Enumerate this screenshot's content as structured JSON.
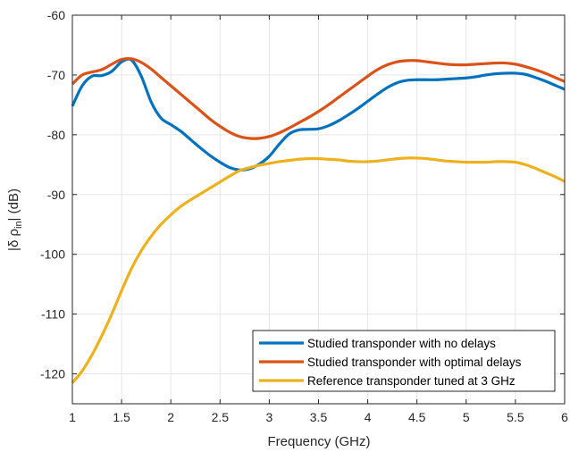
{
  "chart_data": {
    "type": "line",
    "xlabel": "Frequency (GHz)",
    "ylabel": {
      "prefix": "|δ ρ",
      "subscript": "in",
      "suffix": "| (dB)"
    },
    "xlim": [
      1,
      6
    ],
    "ylim": [
      -125,
      -60
    ],
    "xticks": [
      1,
      1.5,
      2,
      2.5,
      3,
      3.5,
      4,
      4.5,
      5,
      5.5,
      6
    ],
    "xtick_labels": [
      "1",
      "1.5",
      "2",
      "2.5",
      "3",
      "3.5",
      "4",
      "4.5",
      "5",
      "5.5",
      "6"
    ],
    "yticks": [
      -120,
      -110,
      -100,
      -90,
      -80,
      -70,
      -60
    ],
    "ytick_labels": [
      "-120",
      "-110",
      "-100",
      "-90",
      "-80",
      "-70",
      "-60"
    ],
    "grid": true,
    "legend_position": "bottom-right",
    "series": [
      {
        "name": "Studied transponder with no delays",
        "color": "#0072BD",
        "x": [
          1,
          1.1,
          1.2,
          1.3,
          1.4,
          1.5,
          1.6,
          1.7,
          1.8,
          1.9,
          2,
          2.1,
          2.2,
          2.3,
          2.4,
          2.5,
          2.6,
          2.7,
          2.8,
          2.9,
          3,
          3.1,
          3.2,
          3.3,
          3.4,
          3.5,
          3.6,
          3.7,
          3.8,
          3.9,
          4,
          4.1,
          4.2,
          4.3,
          4.4,
          4.5,
          4.6,
          4.7,
          4.8,
          4.9,
          5,
          5.1,
          5.2,
          5.3,
          5.4,
          5.5,
          5.6,
          5.7,
          5.8,
          5.9,
          6
        ],
        "y": [
          -75.2,
          -71.8,
          -70.2,
          -70.1,
          -69.4,
          -67.8,
          -67.5,
          -70.2,
          -74.5,
          -77.2,
          -78.3,
          -79.4,
          -80.8,
          -82.2,
          -83.5,
          -84.6,
          -85.5,
          -85.9,
          -85.7,
          -84.9,
          -83.6,
          -81.6,
          -79.9,
          -79.2,
          -79.1,
          -79.0,
          -78.5,
          -77.7,
          -76.7,
          -75.6,
          -74.4,
          -73.2,
          -72.1,
          -71.3,
          -70.9,
          -70.8,
          -70.8,
          -70.8,
          -70.7,
          -70.6,
          -70.5,
          -70.3,
          -70.0,
          -69.8,
          -69.7,
          -69.7,
          -69.9,
          -70.4,
          -71.0,
          -71.7,
          -72.4
        ]
      },
      {
        "name": "Studied transponder with optimal delays",
        "color": "#D95319",
        "x": [
          1,
          1.1,
          1.2,
          1.3,
          1.4,
          1.5,
          1.6,
          1.7,
          1.8,
          1.9,
          2,
          2.1,
          2.2,
          2.3,
          2.4,
          2.5,
          2.6,
          2.7,
          2.8,
          2.9,
          3,
          3.1,
          3.2,
          3.3,
          3.4,
          3.5,
          3.6,
          3.7,
          3.8,
          3.9,
          4,
          4.1,
          4.2,
          4.3,
          4.4,
          4.5,
          4.6,
          4.7,
          4.8,
          4.9,
          5,
          5.1,
          5.2,
          5.3,
          5.4,
          5.5,
          5.6,
          5.7,
          5.8,
          5.9,
          6
        ],
        "y": [
          -71.5,
          -70.0,
          -69.5,
          -69.1,
          -68.2,
          -67.4,
          -67.3,
          -67.9,
          -69.0,
          -70.4,
          -71.8,
          -73.2,
          -74.6,
          -76.0,
          -77.4,
          -78.6,
          -79.6,
          -80.3,
          -80.6,
          -80.6,
          -80.3,
          -79.7,
          -78.9,
          -78.0,
          -77.1,
          -76.1,
          -75.0,
          -73.8,
          -72.6,
          -71.4,
          -70.2,
          -69.1,
          -68.3,
          -67.8,
          -67.6,
          -67.6,
          -67.8,
          -68.0,
          -68.2,
          -68.3,
          -68.3,
          -68.2,
          -68.1,
          -68.0,
          -68.0,
          -68.2,
          -68.6,
          -69.1,
          -69.7,
          -70.4,
          -71.1
        ]
      },
      {
        "name": "Reference transponder tuned at 3 GHz",
        "color": "#EDB120",
        "x": [
          1,
          1.1,
          1.2,
          1.3,
          1.4,
          1.5,
          1.6,
          1.7,
          1.8,
          1.9,
          2,
          2.1,
          2.2,
          2.3,
          2.4,
          2.5,
          2.6,
          2.7,
          2.8,
          2.9,
          3,
          3.1,
          3.2,
          3.3,
          3.4,
          3.5,
          3.6,
          3.7,
          3.8,
          3.9,
          4,
          4.1,
          4.2,
          4.3,
          4.4,
          4.5,
          4.6,
          4.7,
          4.8,
          4.9,
          5,
          5.1,
          5.2,
          5.3,
          5.4,
          5.5,
          5.6,
          5.7,
          5.8,
          5.9,
          6
        ],
        "y": [
          -121.5,
          -119.5,
          -116.8,
          -113.6,
          -110.0,
          -106.1,
          -102.4,
          -99.4,
          -97.0,
          -95.0,
          -93.4,
          -92.0,
          -90.9,
          -89.9,
          -88.9,
          -87.9,
          -86.9,
          -86.0,
          -85.5,
          -85.1,
          -84.8,
          -84.5,
          -84.3,
          -84.1,
          -84.0,
          -84.0,
          -84.1,
          -84.2,
          -84.4,
          -84.5,
          -84.5,
          -84.4,
          -84.2,
          -84.0,
          -83.9,
          -83.9,
          -84.0,
          -84.2,
          -84.4,
          -84.5,
          -84.6,
          -84.6,
          -84.6,
          -84.5,
          -84.5,
          -84.6,
          -85.0,
          -85.6,
          -86.3,
          -87.0,
          -87.8
        ]
      }
    ]
  }
}
